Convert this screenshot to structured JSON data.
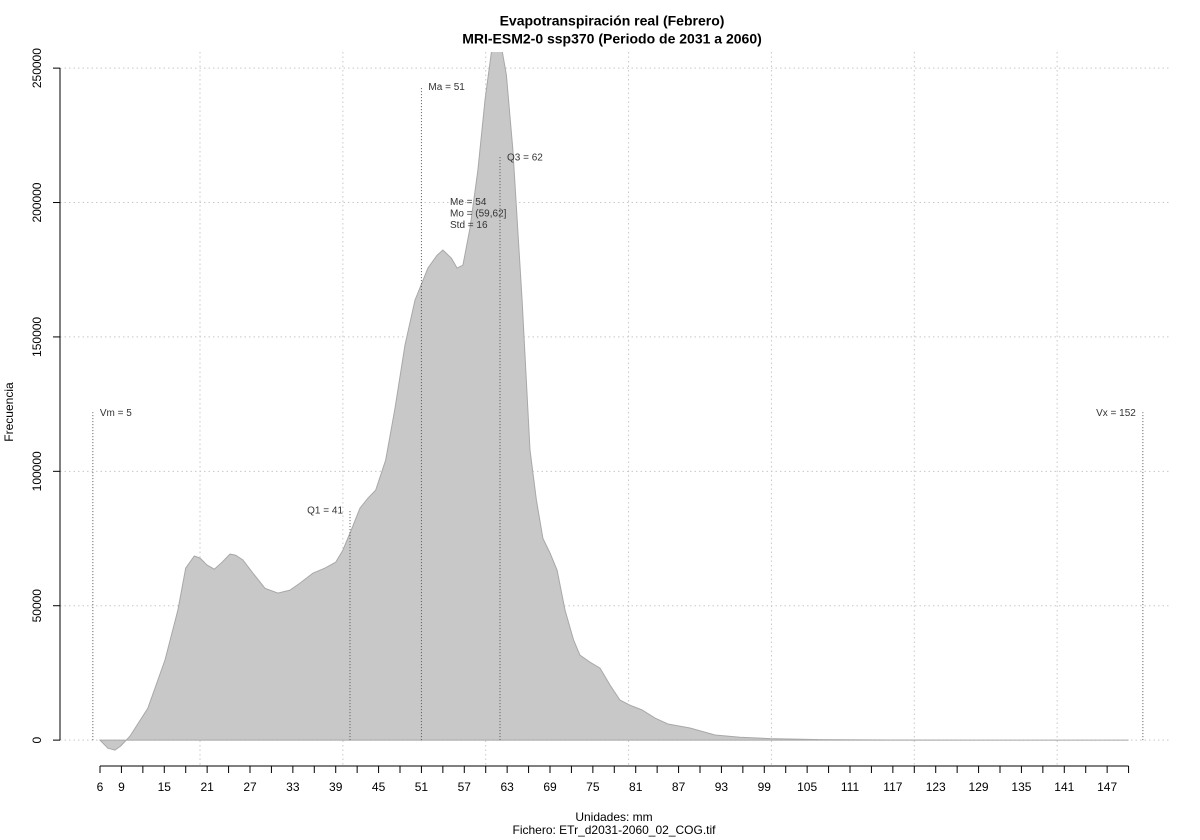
{
  "chart_data": {
    "type": "area",
    "title": [
      "Evapotranspiración real (Febrero)",
      "MRI-ESM2-0 ssp370 (Periodo de 2031 a 2060)"
    ],
    "xlabel": "Unidades: mm",
    "subtitle": "Fichero: ETr_d2031-2060_02_COG.tif",
    "ylabel": "Frecuencia",
    "color": "#c8c8c8",
    "edge_color": "#a8a8a8",
    "x": [
      6,
      7.1,
      8.1,
      8.9,
      10.2,
      12.7,
      15.1,
      16.9,
      18,
      19.2,
      20,
      21,
      22,
      23.1,
      24.2,
      25,
      26,
      27.3,
      29.1,
      30.9,
      32.6,
      34,
      35.8,
      37.5,
      39,
      40,
      41.3,
      42.4,
      43.5,
      44.6,
      46,
      47.3,
      48.7,
      50.1,
      51.9,
      53.2,
      54,
      55.2,
      56,
      56.8,
      57.8,
      58.9,
      59.9,
      60.8,
      61.5,
      62.2,
      62.9,
      63.8,
      65.1,
      66.2,
      67.1,
      68,
      69,
      70,
      71.1,
      72.3,
      73.2,
      74.6,
      76,
      77.4,
      78.8,
      80.2,
      81.9,
      83.7,
      85.5,
      88.6,
      92.1,
      95.6,
      99.8,
      106.8,
      118,
      132,
      150
    ],
    "values": [
      0,
      -3000,
      -3700,
      -2200,
      1500,
      11900,
      29800,
      48400,
      64000,
      68500,
      67700,
      65100,
      63600,
      66200,
      69200,
      68800,
      67000,
      62500,
      56500,
      54700,
      55800,
      58400,
      62100,
      64000,
      66200,
      70700,
      78900,
      86300,
      90000,
      93000,
      104200,
      123500,
      147000,
      163700,
      175600,
      180400,
      182300,
      179300,
      175600,
      176700,
      190500,
      212100,
      238100,
      256000,
      262000,
      258000,
      247400,
      219500,
      163700,
      107900,
      89300,
      75100,
      69600,
      63200,
      48400,
      37200,
      31600,
      29000,
      26800,
      20500,
      14900,
      13000,
      11200,
      8200,
      6000,
      4500,
      1900,
      1100,
      560,
      190,
      50,
      20,
      0
    ],
    "xlim": [
      0.4,
      155.8
    ],
    "ylim": [
      -10000,
      256000
    ],
    "xticks": [
      6,
      9,
      15,
      21,
      27,
      33,
      39,
      45,
      51,
      57,
      63,
      69,
      75,
      81,
      87,
      93,
      99,
      105,
      111,
      117,
      123,
      129,
      135,
      141,
      147
    ],
    "xminor": [
      12,
      18,
      24,
      30,
      36,
      42,
      48,
      54,
      60,
      66,
      72,
      78,
      84,
      90,
      96,
      102,
      108,
      114,
      120,
      126,
      132,
      138,
      144,
      150
    ],
    "xgrid": [
      20,
      40,
      60,
      80,
      100,
      120,
      140
    ],
    "yticks": [
      0,
      50000,
      100000,
      150000,
      200000,
      250000
    ],
    "grid": true,
    "annotations": [
      {
        "label": "Vm = 5",
        "x": 5,
        "y": 122000,
        "pos": "right"
      },
      {
        "label": "Q1 = 41",
        "x": 41,
        "y": 85600,
        "pos": "left"
      },
      {
        "label": "Ma = 51",
        "x": 51,
        "y": 243300,
        "pos": "right"
      },
      {
        "label": "Q3 = 62",
        "x": 62,
        "y": 216900,
        "pos": "right"
      },
      {
        "label": "Vx = 152",
        "x": 152,
        "y": 122000,
        "pos": "left"
      }
    ],
    "stats_text": {
      "x": 55,
      "y": 200000,
      "lines": [
        "Me = 54",
        "Mo = (59,62]",
        "Std = 16"
      ]
    }
  }
}
